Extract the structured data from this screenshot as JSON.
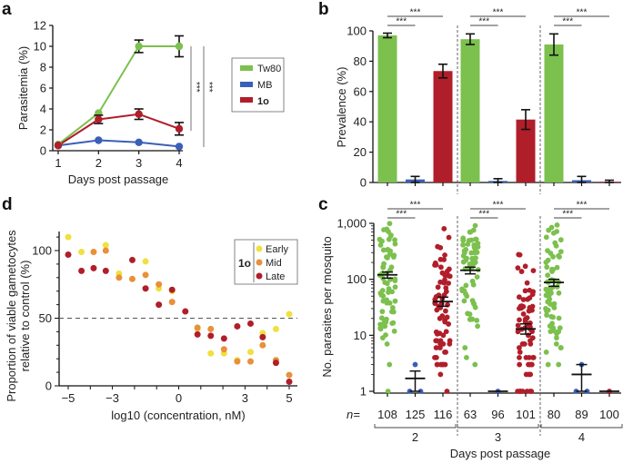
{
  "figure": {
    "panel_labels": [
      "a",
      "b",
      "c",
      "d"
    ]
  },
  "colors": {
    "Tw80": "#7cc04e",
    "MB": "#3a5fb8",
    "1o": "#b01e2a",
    "Early": "#f0e040",
    "Mid": "#e8903a",
    "Late": "#b01e2a",
    "axis": "#111111",
    "sig_line": "#666666",
    "dashed": "#555555"
  },
  "chart_data": [
    {
      "id": "a",
      "type": "line",
      "title": "",
      "xlabel": "Days post passage",
      "ylabel": "Parasitemia (%)",
      "x": [
        1,
        2,
        3,
        4
      ],
      "xticks": [
        "1",
        "2",
        "3",
        "4"
      ],
      "yticks": [
        "0",
        "2",
        "4",
        "6",
        "8",
        "10",
        "12"
      ],
      "ylim": [
        0,
        12
      ],
      "series": [
        {
          "name": "Tw80",
          "values": [
            0.6,
            3.6,
            10.0,
            10.0
          ],
          "err": [
            0.1,
            0.2,
            0.6,
            1.0
          ]
        },
        {
          "name": "MB",
          "values": [
            0.5,
            1.0,
            0.8,
            0.4
          ],
          "err": [
            0.05,
            0.1,
            0.1,
            0.1
          ]
        },
        {
          "name": "1o",
          "values": [
            0.5,
            3.0,
            3.5,
            2.1
          ],
          "err": [
            0.1,
            0.4,
            0.5,
            0.6
          ]
        }
      ],
      "legend": {
        "entries": [
          "Tw80",
          "MB",
          "1o"
        ],
        "placement": "right"
      },
      "significance": [
        {
          "label": "***",
          "between": "Tw80 vs 1o"
        },
        {
          "label": "***",
          "between": "Tw80 vs MB"
        }
      ]
    },
    {
      "id": "b",
      "type": "bar",
      "title": "",
      "ylabel": "Prevalence (%)",
      "ylim": [
        0,
        100
      ],
      "yticks": [
        "0",
        "20",
        "40",
        "60",
        "80",
        "100"
      ],
      "groups": [
        "2",
        "3",
        "4"
      ],
      "series": [
        {
          "name": "Tw80",
          "values": [
            97,
            94.5,
            91
          ],
          "err": [
            1.5,
            3.5,
            7
          ]
        },
        {
          "name": "MB",
          "values": [
            2,
            1,
            1.5
          ],
          "err": [
            2,
            1.5,
            2.5
          ]
        },
        {
          "name": "1o",
          "values": [
            73.5,
            41.5,
            0.5
          ],
          "err": [
            4.5,
            6.5,
            1
          ]
        }
      ],
      "significance": [
        {
          "group": "2",
          "label": "***",
          "pair": [
            "Tw80",
            "MB"
          ]
        },
        {
          "group": "2",
          "label": "***",
          "pair": [
            "Tw80",
            "1o"
          ]
        },
        {
          "group": "3",
          "label": "***",
          "pair": [
            "Tw80",
            "MB"
          ]
        },
        {
          "group": "3",
          "label": "***",
          "pair": [
            "Tw80",
            "1o"
          ]
        },
        {
          "group": "4",
          "label": "***",
          "pair": [
            "Tw80",
            "MB"
          ]
        },
        {
          "group": "4",
          "label": "***",
          "pair": [
            "Tw80",
            "1o"
          ]
        }
      ]
    },
    {
      "id": "c",
      "type": "scatter",
      "title": "",
      "xlabel": "Days post passage",
      "ylabel": "No. parasites per mosquito",
      "yscale": "log",
      "ylim": [
        1,
        1000
      ],
      "yticks": [
        "1",
        "10",
        "100",
        "1,000"
      ],
      "groups": [
        "2",
        "3",
        "4"
      ],
      "n_prefix": "n=",
      "columns": [
        {
          "group": "2",
          "series": "Tw80",
          "n": "108",
          "mean": 120,
          "sem": [
            105,
            135
          ]
        },
        {
          "group": "2",
          "series": "MB",
          "n": "125",
          "mean": 1.7,
          "sem": [
            1,
            2.3
          ]
        },
        {
          "group": "2",
          "series": "1o",
          "n": "116",
          "mean": 40,
          "sem": [
            33,
            48
          ]
        },
        {
          "group": "3",
          "series": "Tw80",
          "n": "63",
          "mean": 145,
          "sem": [
            125,
            165
          ]
        },
        {
          "group": "3",
          "series": "MB",
          "n": "96",
          "mean": 1,
          "sem": [
            1,
            1
          ]
        },
        {
          "group": "3",
          "series": "1o",
          "n": "101",
          "mean": 13,
          "sem": [
            10.5,
            16
          ]
        },
        {
          "group": "4",
          "series": "Tw80",
          "n": "80",
          "mean": 88,
          "sem": [
            75,
            100
          ]
        },
        {
          "group": "4",
          "series": "MB",
          "n": "89",
          "mean": 2,
          "sem": [
            1,
            3
          ]
        },
        {
          "group": "4",
          "series": "1o",
          "n": "100",
          "mean": 1,
          "sem": [
            1,
            1
          ]
        }
      ],
      "significance": [
        {
          "group": "2",
          "label": "***",
          "pair": [
            "Tw80",
            "MB"
          ]
        },
        {
          "group": "2",
          "label": "***",
          "pair": [
            "Tw80",
            "1o"
          ]
        },
        {
          "group": "3",
          "label": "***",
          "pair": [
            "Tw80",
            "MB"
          ]
        },
        {
          "group": "3",
          "label": "***",
          "pair": [
            "Tw80",
            "1o"
          ]
        },
        {
          "group": "4",
          "label": "***",
          "pair": [
            "Tw80",
            "MB"
          ]
        },
        {
          "group": "4",
          "label": "***",
          "pair": [
            "Tw80",
            "1o"
          ]
        }
      ]
    },
    {
      "id": "d",
      "type": "scatter",
      "title": "",
      "xlabel": "log10 (concentration, nM)",
      "ylabel": "Proportion of viable gametocytes relative to control (%)",
      "ylabel_lines": [
        "Proportion of viable gametocytes",
        "relative to control (%)"
      ],
      "xlim": [
        -5.4,
        5.4
      ],
      "ylim": [
        0,
        115
      ],
      "xticks": [
        "-5",
        "-3",
        "0",
        "3",
        "5"
      ],
      "xtick_values": [
        -5,
        -3,
        0,
        3,
        5
      ],
      "yticks": [
        "0",
        "50",
        "100"
      ],
      "reference_line": 50,
      "legend": {
        "group_label": "1o",
        "entries": [
          "Early",
          "Mid",
          "Late"
        ],
        "placement": "top-right"
      },
      "series": [
        {
          "name": "Early",
          "points": [
            [
              -5,
              110
            ],
            [
              -4.4,
              99
            ],
            [
              -3.3,
              104
            ],
            [
              -2.7,
              83
            ],
            [
              -1.5,
              92
            ],
            [
              -0.9,
              72
            ],
            [
              -0.3,
              70
            ],
            [
              0.85,
              42
            ],
            [
              1.45,
              24
            ],
            [
              2.05,
              24
            ],
            [
              2.65,
              19
            ],
            [
              3.25,
              25
            ],
            [
              3.8,
              39
            ],
            [
              4.4,
              42
            ],
            [
              5,
              53
            ]
          ]
        },
        {
          "name": "Mid",
          "points": [
            [
              -3.85,
              99
            ],
            [
              -3.3,
              100
            ],
            [
              -2.7,
              80
            ],
            [
              -2.1,
              79
            ],
            [
              -1.5,
              82
            ],
            [
              -0.9,
              75
            ],
            [
              -0.3,
              62
            ],
            [
              0.85,
              43
            ],
            [
              1.45,
              42
            ],
            [
              2.05,
              27
            ],
            [
              2.65,
              18
            ],
            [
              3.25,
              18
            ],
            [
              3.8,
              30
            ],
            [
              4.4,
              19
            ],
            [
              5,
              8
            ]
          ]
        },
        {
          "name": "Late",
          "points": [
            [
              -5,
              97
            ],
            [
              -4.4,
              85
            ],
            [
              -3.85,
              87
            ],
            [
              -3.3,
              85
            ],
            [
              -2.1,
              93
            ],
            [
              -1.5,
              72
            ],
            [
              -0.9,
              60
            ],
            [
              -0.3,
              71
            ],
            [
              0.3,
              55
            ],
            [
              0.85,
              38
            ],
            [
              1.45,
              37
            ],
            [
              2.05,
              35
            ],
            [
              2.65,
              44
            ],
            [
              3.25,
              46
            ],
            [
              3.8,
              36
            ],
            [
              4.4,
              17
            ],
            [
              5,
              3
            ]
          ]
        }
      ]
    }
  ]
}
